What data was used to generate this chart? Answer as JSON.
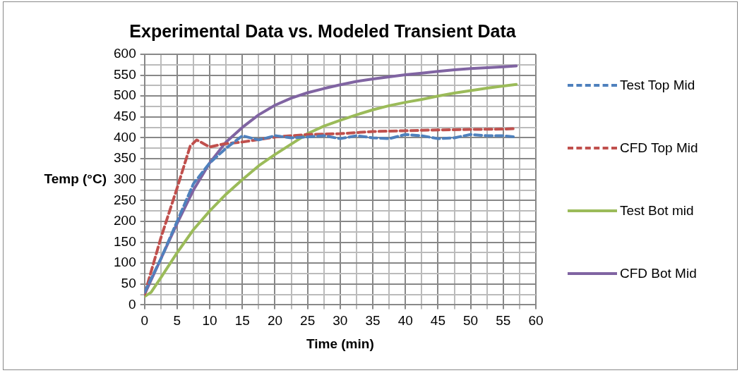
{
  "chart_data": {
    "type": "line",
    "title": "Experimental Data vs. Modeled Transient Data",
    "xlabel": "Time (min)",
    "ylabel": "Temp (°C)",
    "xlim": [
      0,
      60
    ],
    "ylim": [
      0,
      600
    ],
    "xticks": [
      0,
      {
        "value": 2.5,
        "label": null
      },
      5,
      {
        "value": 7.5,
        "label": null
      },
      10,
      {
        "value": 12.5,
        "label": null
      },
      15,
      {
        "value": 17.5,
        "label": null
      },
      20,
      {
        "value": 22.5,
        "label": null
      },
      25,
      {
        "value": 27.5,
        "label": null
      },
      30,
      {
        "value": 32.5,
        "label": null
      },
      35,
      {
        "value": 37.5,
        "label": null
      },
      40,
      {
        "value": 42.5,
        "label": null
      },
      45,
      {
        "value": 47.5,
        "label": null
      },
      50,
      {
        "value": 52.5,
        "label": null
      },
      55,
      {
        "value": 57.5,
        "label": null
      },
      60
    ],
    "yticks": [
      0,
      {
        "value": 25,
        "label": null
      },
      50,
      {
        "value": 75,
        "label": null
      },
      100,
      {
        "value": 125,
        "label": null
      },
      150,
      {
        "value": 175,
        "label": null
      },
      200,
      {
        "value": 225,
        "label": null
      },
      250,
      {
        "value": 275,
        "label": null
      },
      300,
      {
        "value": 325,
        "label": null
      },
      350,
      {
        "value": 375,
        "label": null
      },
      400,
      {
        "value": 425,
        "label": null
      },
      450,
      {
        "value": 475,
        "label": null
      },
      500,
      {
        "value": 525,
        "label": null
      },
      550,
      {
        "value": 575,
        "label": null
      },
      600
    ],
    "grid": true,
    "legend": "right",
    "marker": "none",
    "series": [
      {
        "name": "Test Top Mid",
        "color": "#4f81bd",
        "line_style": "dashed",
        "x": [
          0,
          2.5,
          5,
          7.5,
          10,
          12.5,
          15,
          17.5,
          20,
          22.5,
          25,
          27.5,
          30,
          32.5,
          35,
          37.5,
          40,
          42.5,
          45,
          47.5,
          50,
          52.5,
          55,
          57
        ],
        "values": [
          30,
          110,
          200,
          290,
          340,
          375,
          405,
          395,
          405,
          400,
          402,
          405,
          398,
          405,
          400,
          398,
          408,
          405,
          398,
          400,
          408,
          405,
          405,
          402
        ]
      },
      {
        "name": "CFD Top Mid",
        "color": "#c0504d",
        "line_style": "dashed",
        "x": [
          0,
          2.5,
          5,
          7,
          8,
          10,
          12,
          15,
          20,
          25,
          30,
          35,
          40,
          45,
          50,
          55,
          57
        ],
        "values": [
          25,
          160,
          280,
          380,
          395,
          378,
          385,
          390,
          402,
          408,
          410,
          415,
          417,
          419,
          420,
          421,
          422
        ]
      },
      {
        "name": "Test Bot mid",
        "color": "#9bbb59",
        "line_style": "solid",
        "x": [
          0,
          1,
          2.5,
          5,
          7.5,
          10,
          12.5,
          15,
          17.5,
          20,
          22.5,
          25,
          27.5,
          30,
          32.5,
          35,
          37.5,
          40,
          42.5,
          45,
          47.5,
          50,
          52.5,
          55,
          57
        ],
        "values": [
          20,
          30,
          65,
          125,
          180,
          225,
          265,
          300,
          333,
          360,
          385,
          410,
          428,
          442,
          455,
          467,
          477,
          485,
          492,
          500,
          507,
          513,
          519,
          524,
          528
        ]
      },
      {
        "name": "CFD Bot Mid",
        "color": "#8064a2",
        "line_style": "solid",
        "x": [
          0,
          2.5,
          5,
          7.5,
          10,
          12.5,
          15,
          17.5,
          20,
          22.5,
          25,
          27.5,
          30,
          32.5,
          35,
          37.5,
          40,
          42.5,
          45,
          47.5,
          50,
          52.5,
          55,
          57
        ],
        "values": [
          25,
          110,
          195,
          275,
          340,
          390,
          425,
          455,
          478,
          495,
          508,
          518,
          527,
          535,
          541,
          546,
          551,
          555,
          559,
          563,
          566,
          568,
          570,
          572
        ]
      }
    ]
  }
}
